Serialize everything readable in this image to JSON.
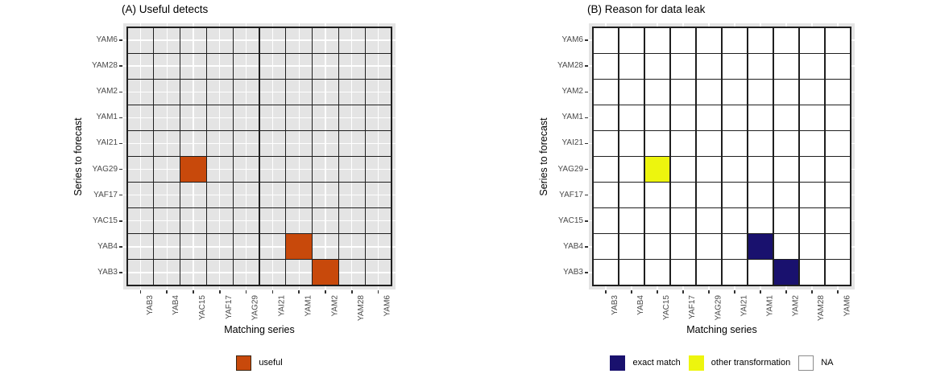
{
  "figure": {
    "background": "#FFFFFF",
    "panel_background": "#E4E4E4",
    "cell_border_color": "#1F1F1F",
    "tick_label_color": "#4A4A4A"
  },
  "chart_data": [
    {
      "type": "heatmap",
      "id": "A",
      "title": "(A) Useful detects",
      "xlabel": "Matching series",
      "ylabel": "Series to forecast",
      "x_categories": [
        "YAB3",
        "YAB4",
        "YAC15",
        "YAF17",
        "YAG29",
        "YAI21",
        "YAM1",
        "YAM2",
        "YAM28",
        "YAM6"
      ],
      "y_categories_top_to_bottom": [
        "YAM6",
        "YAM28",
        "YAM2",
        "YAM1",
        "YAI21",
        "YAG29",
        "YAF17",
        "YAC15",
        "YAB4",
        "YAB3"
      ],
      "cells": [
        {
          "y": "YAG29",
          "x": "YAC15",
          "value": "useful"
        },
        {
          "y": "YAB4",
          "x": "YAM1",
          "value": "useful"
        },
        {
          "y": "YAB3",
          "x": "YAM2",
          "value": "useful"
        }
      ],
      "value_colors": {
        "useful": "#C8490B"
      },
      "panel_background": "#E4E4E4",
      "cell_default_fill": "transparent",
      "gridlines": "white lines at category centers",
      "legend_position": "bottom",
      "legend": [
        {
          "label": "useful",
          "color": "#C8490B",
          "border": "#3A2410"
        }
      ]
    },
    {
      "type": "heatmap",
      "id": "B",
      "title": "(B) Reason for data leak",
      "xlabel": "Matching series",
      "ylabel": "Series to forecast",
      "x_categories": [
        "YAB3",
        "YAB4",
        "YAC15",
        "YAF17",
        "YAG29",
        "YAI21",
        "YAM1",
        "YAM2",
        "YAM28",
        "YAM6"
      ],
      "y_categories_top_to_bottom": [
        "YAM6",
        "YAM28",
        "YAM2",
        "YAM1",
        "YAI21",
        "YAG29",
        "YAF17",
        "YAC15",
        "YAB4",
        "YAB3"
      ],
      "cells": [
        {
          "y": "YAG29",
          "x": "YAC15",
          "value": "other transformation"
        },
        {
          "y": "YAB4",
          "x": "YAM1",
          "value": "exact match"
        },
        {
          "y": "YAB3",
          "x": "YAM2",
          "value": "exact match"
        }
      ],
      "value_colors": {
        "exact match": "#19116E",
        "other transformation": "#EDF50E",
        "NA": "#FFFFFF"
      },
      "panel_background": "#E4E4E4",
      "cell_default_fill": "#FFFFFF",
      "gridlines": "white lines at category centers",
      "legend_position": "bottom",
      "legend": [
        {
          "label": "exact match",
          "color": "#19116E",
          "border": "none"
        },
        {
          "label": "other transformation",
          "color": "#EDF50E",
          "border": "none"
        },
        {
          "label": "NA",
          "color": "#FFFFFF",
          "border": "#8C8C8C"
        }
      ]
    }
  ]
}
